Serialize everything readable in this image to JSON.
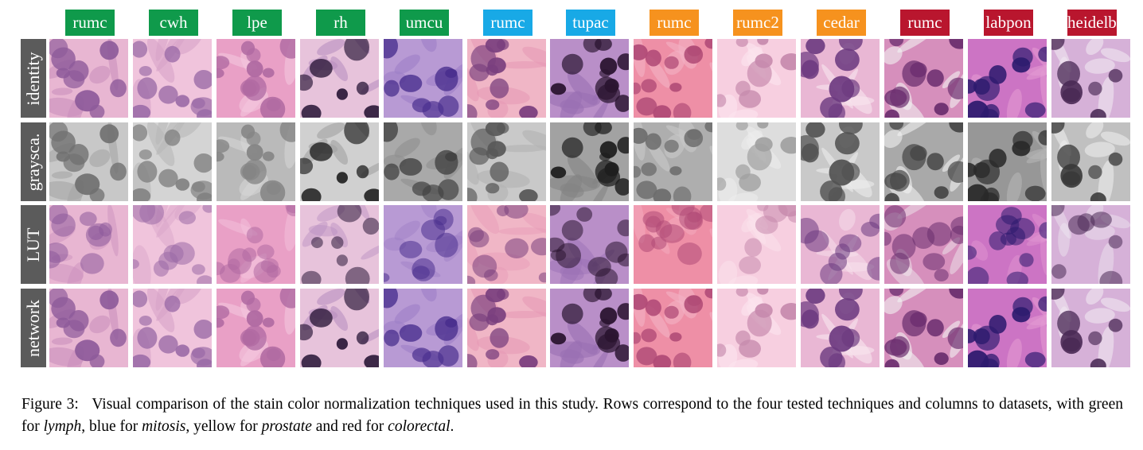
{
  "columns": [
    {
      "label": "rumc",
      "color": "#0f9a4b"
    },
    {
      "label": "cwh",
      "color": "#0f9a4b"
    },
    {
      "label": "lpe",
      "color": "#0f9a4b"
    },
    {
      "label": "rh",
      "color": "#0f9a4b"
    },
    {
      "label": "umcu",
      "color": "#0f9a4b"
    },
    {
      "label": "rumc",
      "color": "#18a9e6"
    },
    {
      "label": "tupac",
      "color": "#18a9e6"
    },
    {
      "label": "rumc",
      "color": "#f6921e"
    },
    {
      "label": "rumc2",
      "color": "#f6921e"
    },
    {
      "label": "cedar",
      "color": "#f6921e"
    },
    {
      "label": "rumc",
      "color": "#b9162e"
    },
    {
      "label": "labpon",
      "color": "#b9162e"
    },
    {
      "label": "heidelb.",
      "color": "#b9162e"
    }
  ],
  "rows": [
    {
      "label": "identity"
    },
    {
      "label": "graysca."
    },
    {
      "label": "LUT"
    },
    {
      "label": "network"
    }
  ],
  "caption": {
    "figure_label": "Figure 3:",
    "text_1": "Visual comparison of the stain color normalization techniques used in this study. Rows correspond to the four tested techniques and columns to datasets, with green for ",
    "lymph": "lymph",
    "text_2": ", blue for ",
    "mitosis": "mitosis",
    "text_3": ", yellow for ",
    "prostate": "prostate",
    "text_4": " and red for ",
    "colorectal": "colorectal",
    "text_5": "."
  }
}
